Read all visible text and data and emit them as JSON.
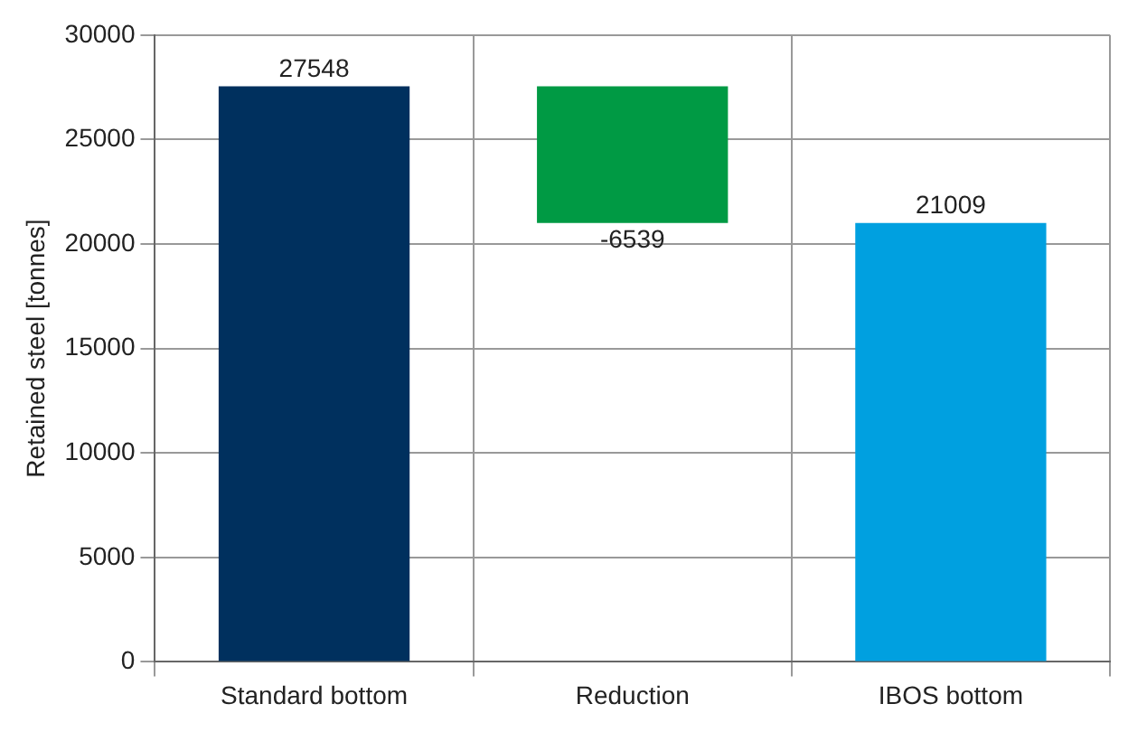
{
  "chart_data": {
    "type": "bar",
    "ylabel": "Retained steel [tonnes]",
    "categories": [
      "Standard bottom",
      "Reduction",
      "IBOS bottom"
    ],
    "values": [
      27548,
      -6539,
      21009
    ],
    "base": [
      0,
      27548,
      0
    ],
    "colors": [
      "#00305e",
      "#009a44",
      "#00a0e0"
    ],
    "ylim": [
      0,
      30000
    ],
    "yticks": [
      0,
      5000,
      10000,
      15000,
      20000,
      25000,
      30000
    ],
    "grid": true,
    "data_labels": true
  }
}
